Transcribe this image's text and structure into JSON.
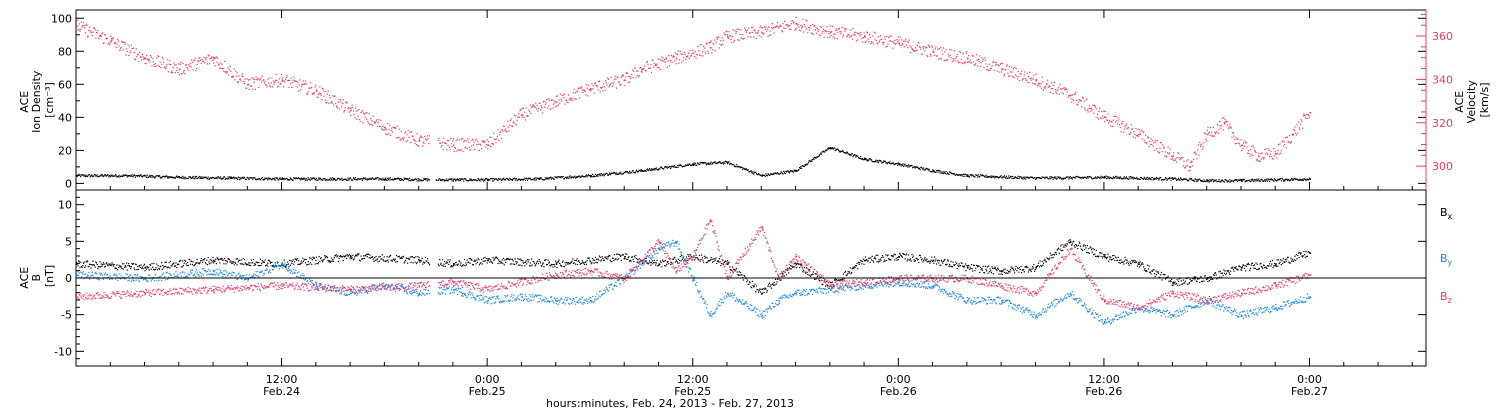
{
  "chart_data": [
    {
      "type": "scatter",
      "panel": "top",
      "xlabel": "hours:minutes, Feb. 24, 2013 - Feb. 27, 2013",
      "x_ticks": [
        {
          "hours": 12,
          "time": "12:00",
          "date": "Feb.24"
        },
        {
          "hours": 24,
          "time": "0:00",
          "date": "Feb.25"
        },
        {
          "hours": 36,
          "time": "12:00",
          "date": "Feb.25"
        },
        {
          "hours": 48,
          "time": "0:00",
          "date": "Feb.26"
        },
        {
          "hours": 60,
          "time": "12:00",
          "date": "Feb.26"
        },
        {
          "hours": 72,
          "time": "0:00",
          "date": "Feb.27"
        }
      ],
      "xlim_hours": [
        0,
        78.8
      ],
      "left_axis": {
        "label_lines": [
          "ACE",
          "Ion Density",
          "[cm⁻³]"
        ],
        "ylim": [
          -4,
          105
        ],
        "ticks": [
          "0",
          "20",
          "40",
          "60",
          "80",
          "100"
        ]
      },
      "right_axis": {
        "label_lines": [
          "ACE",
          "Velocity",
          "[km/s]"
        ],
        "ylim": [
          289,
          372
        ],
        "ticks": [
          "300",
          "320",
          "340",
          "360"
        ],
        "color": "#e8386a"
      },
      "series": [
        {
          "axis": "left",
          "color": "#000000",
          "points": [
            [
              0,
              5
            ],
            [
              3,
              5
            ],
            [
              6,
              4
            ],
            [
              9,
              3.5
            ],
            [
              12,
              3
            ],
            [
              15,
              3
            ],
            [
              18,
              3
            ],
            [
              21,
              2.5
            ],
            [
              24,
              2.5
            ],
            [
              27,
              3
            ],
            [
              30,
              5
            ],
            [
              33,
              8
            ],
            [
              36,
              12
            ],
            [
              38,
              13
            ],
            [
              40,
              5
            ],
            [
              42,
              8
            ],
            [
              44,
              22
            ],
            [
              46,
              15
            ],
            [
              48,
              12
            ],
            [
              50,
              8
            ],
            [
              52,
              5
            ],
            [
              56,
              3.5
            ],
            [
              60,
              4
            ],
            [
              64,
              3
            ],
            [
              66,
              2
            ],
            [
              68,
              2
            ],
            [
              72,
              3
            ]
          ]
        },
        {
          "axis": "right",
          "color": "#e8386a",
          "points": [
            [
              0,
              365
            ],
            [
              2,
              358
            ],
            [
              4,
              350
            ],
            [
              6,
              345
            ],
            [
              8,
              350
            ],
            [
              10,
              338
            ],
            [
              12,
              340
            ],
            [
              14,
              335
            ],
            [
              16,
              326
            ],
            [
              18,
              318
            ],
            [
              20,
              312
            ],
            [
              22,
              310
            ],
            [
              24,
              310
            ],
            [
              26,
              324
            ],
            [
              28,
              330
            ],
            [
              30,
              336
            ],
            [
              32,
              340
            ],
            [
              33,
              345
            ],
            [
              35,
              350
            ],
            [
              37,
              355
            ],
            [
              38,
              360
            ],
            [
              40,
              362
            ],
            [
              42,
              366
            ],
            [
              44,
              362
            ],
            [
              46,
              360
            ],
            [
              48,
              357
            ],
            [
              50,
              353
            ],
            [
              52,
              350
            ],
            [
              54,
              345
            ],
            [
              56,
              340
            ],
            [
              58,
              333
            ],
            [
              60,
              323
            ],
            [
              62,
              315
            ],
            [
              64,
              305
            ],
            [
              65,
              300
            ],
            [
              66,
              315
            ],
            [
              67,
              320
            ],
            [
              68,
              310
            ],
            [
              69,
              305
            ],
            [
              70,
              306
            ],
            [
              71,
              315
            ],
            [
              72,
              325
            ]
          ]
        }
      ]
    },
    {
      "type": "scatter",
      "panel": "bottom",
      "xlim_hours": [
        0,
        78.8
      ],
      "left_axis": {
        "label_lines": [
          "ACE",
          "B",
          "[nT]"
        ],
        "ylim": [
          -12,
          12
        ],
        "ticks": [
          "-10",
          "-5",
          "0",
          "5",
          "10"
        ]
      },
      "legend": [
        {
          "name": "B",
          "sub": "x",
          "color": "#000000"
        },
        {
          "name": "B",
          "sub": "y",
          "color": "#1a88e0"
        },
        {
          "name": "B",
          "sub": "z",
          "color": "#e8386a"
        }
      ],
      "series": [
        {
          "name": "Bx",
          "color": "#000000",
          "points": [
            [
              0,
              2
            ],
            [
              4,
              1.5
            ],
            [
              8,
              2.5
            ],
            [
              12,
              2
            ],
            [
              16,
              3
            ],
            [
              20,
              2.5
            ],
            [
              22,
              2
            ],
            [
              24,
              2.5
            ],
            [
              28,
              2
            ],
            [
              32,
              3
            ],
            [
              34,
              2
            ],
            [
              36,
              3
            ],
            [
              38,
              2
            ],
            [
              40,
              -2
            ],
            [
              42,
              2
            ],
            [
              44,
              -1
            ],
            [
              46,
              2.5
            ],
            [
              48,
              3
            ],
            [
              50,
              2.5
            ],
            [
              52,
              1.5
            ],
            [
              54,
              1
            ],
            [
              56,
              1.5
            ],
            [
              58,
              5
            ],
            [
              60,
              3
            ],
            [
              62,
              2
            ],
            [
              64,
              -0.5
            ],
            [
              66,
              0
            ],
            [
              68,
              1.5
            ],
            [
              70,
              2
            ],
            [
              72,
              3.5
            ]
          ]
        },
        {
          "name": "By",
          "color": "#1a88e0",
          "points": [
            [
              0,
              0.5
            ],
            [
              4,
              0
            ],
            [
              8,
              1
            ],
            [
              10,
              0
            ],
            [
              12,
              2
            ],
            [
              14,
              -1
            ],
            [
              16,
              -2
            ],
            [
              18,
              -1
            ],
            [
              20,
              -2
            ],
            [
              22,
              -1.5
            ],
            [
              24,
              -3
            ],
            [
              26,
              -2.5
            ],
            [
              28,
              -3
            ],
            [
              30,
              -3
            ],
            [
              32,
              0
            ],
            [
              34,
              4
            ],
            [
              35,
              5
            ],
            [
              36,
              0
            ],
            [
              37,
              -5
            ],
            [
              38,
              -2
            ],
            [
              40,
              -5
            ],
            [
              41,
              -3
            ],
            [
              42,
              -2
            ],
            [
              44,
              -1.5
            ],
            [
              46,
              -1
            ],
            [
              48,
              -0.5
            ],
            [
              50,
              -1
            ],
            [
              52,
              -3
            ],
            [
              54,
              -3
            ],
            [
              56,
              -5
            ],
            [
              58,
              -2
            ],
            [
              60,
              -6
            ],
            [
              62,
              -4
            ],
            [
              64,
              -5
            ],
            [
              66,
              -3
            ],
            [
              68,
              -5
            ],
            [
              70,
              -4
            ],
            [
              72,
              -2.5
            ]
          ]
        },
        {
          "name": "Bz",
          "color": "#e8386a",
          "points": [
            [
              0,
              -2.5
            ],
            [
              4,
              -2
            ],
            [
              8,
              -1.5
            ],
            [
              12,
              -1
            ],
            [
              16,
              -1.5
            ],
            [
              20,
              -1
            ],
            [
              22,
              -0.5
            ],
            [
              24,
              -1.5
            ],
            [
              28,
              0.5
            ],
            [
              30,
              1
            ],
            [
              32,
              0
            ],
            [
              34,
              5
            ],
            [
              35,
              1
            ],
            [
              36,
              3
            ],
            [
              37,
              8
            ],
            [
              38,
              0
            ],
            [
              40,
              7
            ],
            [
              41,
              0
            ],
            [
              42,
              3
            ],
            [
              44,
              -1
            ],
            [
              46,
              -0.5
            ],
            [
              48,
              0
            ],
            [
              50,
              0
            ],
            [
              52,
              0
            ],
            [
              54,
              -1
            ],
            [
              56,
              -2
            ],
            [
              58,
              4
            ],
            [
              60,
              -3
            ],
            [
              62,
              -4
            ],
            [
              64,
              -2
            ],
            [
              66,
              -3
            ],
            [
              68,
              -2
            ],
            [
              70,
              -1
            ],
            [
              72,
              0.5
            ]
          ]
        }
      ]
    }
  ]
}
